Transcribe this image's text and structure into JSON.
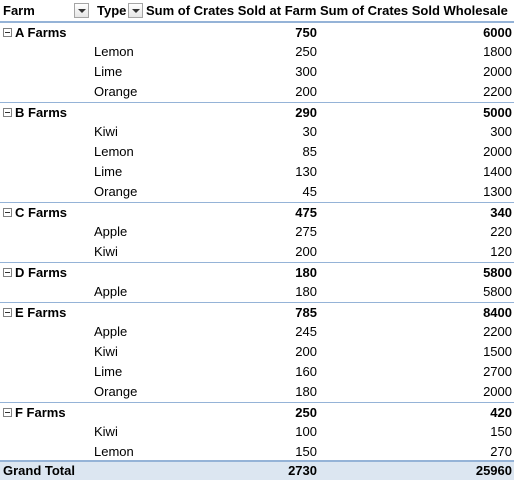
{
  "header": {
    "farm_label": "Farm",
    "type_label": "Type",
    "value1_label": "Sum of Crates Sold at Farm",
    "value2_label": "Sum of Crates Sold Wholesale"
  },
  "groups": [
    {
      "name": "A Farms",
      "at_farm": "750",
      "wholesale": "6000",
      "items": [
        {
          "type": "Lemon",
          "at_farm": "250",
          "wholesale": "1800"
        },
        {
          "type": "Lime",
          "at_farm": "300",
          "wholesale": "2000"
        },
        {
          "type": "Orange",
          "at_farm": "200",
          "wholesale": "2200"
        }
      ]
    },
    {
      "name": "B Farms",
      "at_farm": "290",
      "wholesale": "5000",
      "items": [
        {
          "type": "Kiwi",
          "at_farm": "30",
          "wholesale": "300"
        },
        {
          "type": "Lemon",
          "at_farm": "85",
          "wholesale": "2000"
        },
        {
          "type": "Lime",
          "at_farm": "130",
          "wholesale": "1400"
        },
        {
          "type": "Orange",
          "at_farm": "45",
          "wholesale": "1300"
        }
      ]
    },
    {
      "name": "C Farms",
      "at_farm": "475",
      "wholesale": "340",
      "items": [
        {
          "type": "Apple",
          "at_farm": "275",
          "wholesale": "220"
        },
        {
          "type": "Kiwi",
          "at_farm": "200",
          "wholesale": "120"
        }
      ]
    },
    {
      "name": "D Farms",
      "at_farm": "180",
      "wholesale": "5800",
      "items": [
        {
          "type": "Apple",
          "at_farm": "180",
          "wholesale": "5800"
        }
      ]
    },
    {
      "name": "E Farms",
      "at_farm": "785",
      "wholesale": "8400",
      "items": [
        {
          "type": "Apple",
          "at_farm": "245",
          "wholesale": "2200"
        },
        {
          "type": "Kiwi",
          "at_farm": "200",
          "wholesale": "1500"
        },
        {
          "type": "Lime",
          "at_farm": "160",
          "wholesale": "2700"
        },
        {
          "type": "Orange",
          "at_farm": "180",
          "wholesale": "2000"
        }
      ]
    },
    {
      "name": "F Farms",
      "at_farm": "250",
      "wholesale": "420",
      "items": [
        {
          "type": "Kiwi",
          "at_farm": "100",
          "wholesale": "150"
        },
        {
          "type": "Lemon",
          "at_farm": "150",
          "wholesale": "270"
        }
      ]
    }
  ],
  "grand_total": {
    "label": "Grand Total",
    "at_farm": "2730",
    "wholesale": "25960"
  },
  "colors": {
    "header_border": "#95b3d7",
    "grand_total_bg": "#dce6f1"
  }
}
